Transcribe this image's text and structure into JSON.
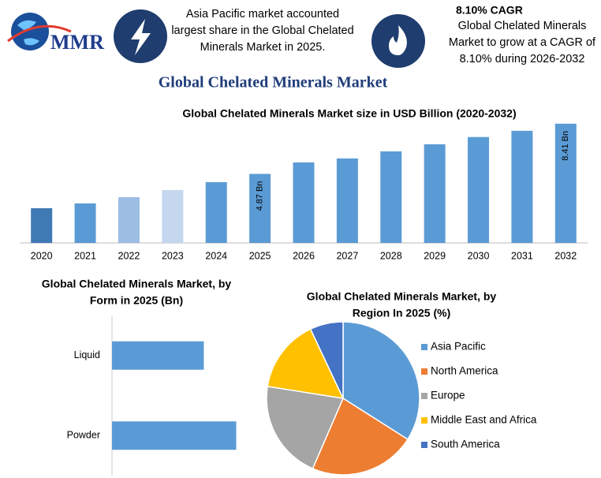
{
  "header": {
    "logo": "MMR",
    "note_left": [
      "Asia Pacific market accounted",
      "largest share in the Global Chelated",
      "Minerals Market in 2025."
    ],
    "cagr_title": "8.10% CAGR",
    "note_right": [
      "Global Chelated Minerals",
      "Market to grow at a CAGR of",
      "8.10% during 2026-2032"
    ],
    "title": "Global Chelated Minerals Market"
  },
  "chart_data": [
    {
      "type": "bar",
      "title": "Global Chelated Minerals Market size in USD Billion (2020-2032)",
      "categories": [
        "2020",
        "2021",
        "2022",
        "2023",
        "2024",
        "2025",
        "2026",
        "2027",
        "2028",
        "2029",
        "2030",
        "2031",
        "2032"
      ],
      "values": [
        2.45,
        2.79,
        3.23,
        3.73,
        4.29,
        4.87,
        5.68,
        5.96,
        6.46,
        6.96,
        7.47,
        7.91,
        8.41
      ],
      "value_labels": [
        null,
        null,
        null,
        null,
        null,
        "4.87 Bn",
        null,
        null,
        null,
        null,
        null,
        null,
        "8.41 Bn"
      ],
      "colors": [
        "#3f7ab5",
        "#5b9bd5",
        "#9dbde3",
        "#c5d7ef",
        "#5b9bd5",
        "#5b9bd5",
        "#5b9bd5",
        "#5b9bd5",
        "#5b9bd5",
        "#5b9bd5",
        "#5b9bd5",
        "#5b9bd5",
        "#5b9bd5"
      ],
      "ylim": [
        0,
        8.4
      ]
    },
    {
      "type": "barh",
      "title": [
        "Global Chelated Minerals Market, by",
        "Form in 2025 (Bn)"
      ],
      "categories": [
        "Liquid",
        "Powder"
      ],
      "values": [
        2.07,
        2.8
      ],
      "color": "#5b9bd5",
      "xlim": [
        0,
        3.2
      ]
    },
    {
      "type": "pie",
      "title": [
        "Global Chelated Minerals Market, by",
        "Region In 2025 (%)"
      ],
      "categories": [
        "Asia Pacific",
        "North America",
        "Europe",
        "Middle East and Africa",
        "South America"
      ],
      "values": [
        34,
        22.5,
        21,
        15.5,
        7
      ],
      "colors": [
        "#5b9bd5",
        "#ed7d31",
        "#a5a5a5",
        "#ffc000",
        "#4472c4"
      ],
      "legend": "right"
    }
  ]
}
